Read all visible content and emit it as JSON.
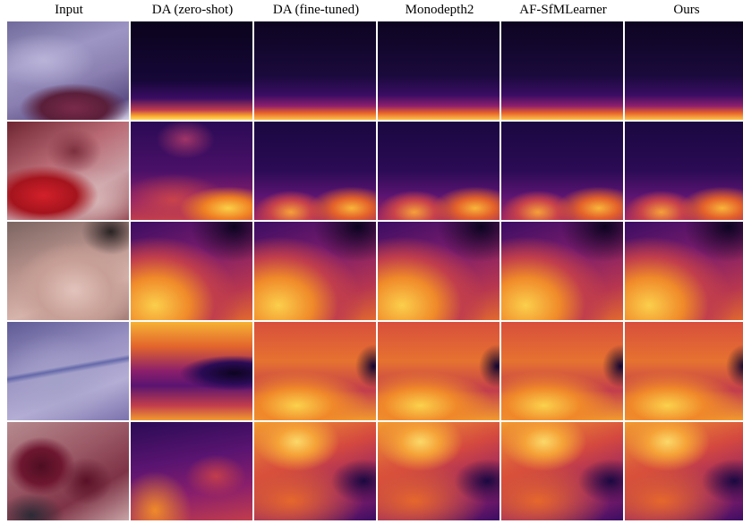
{
  "figure": {
    "columns": [
      {
        "label": "Input"
      },
      {
        "label": "DA (zero-shot)"
      },
      {
        "label": "DA (fine-tuned)"
      },
      {
        "label": "Monodepth2"
      },
      {
        "label": "AF-SfMLearner"
      },
      {
        "label": "Ours"
      }
    ],
    "row_count": 5,
    "colormap": "inferno",
    "colors": {
      "depth_dark": "#12062e",
      "depth_bright": "#fcc44a"
    }
  }
}
